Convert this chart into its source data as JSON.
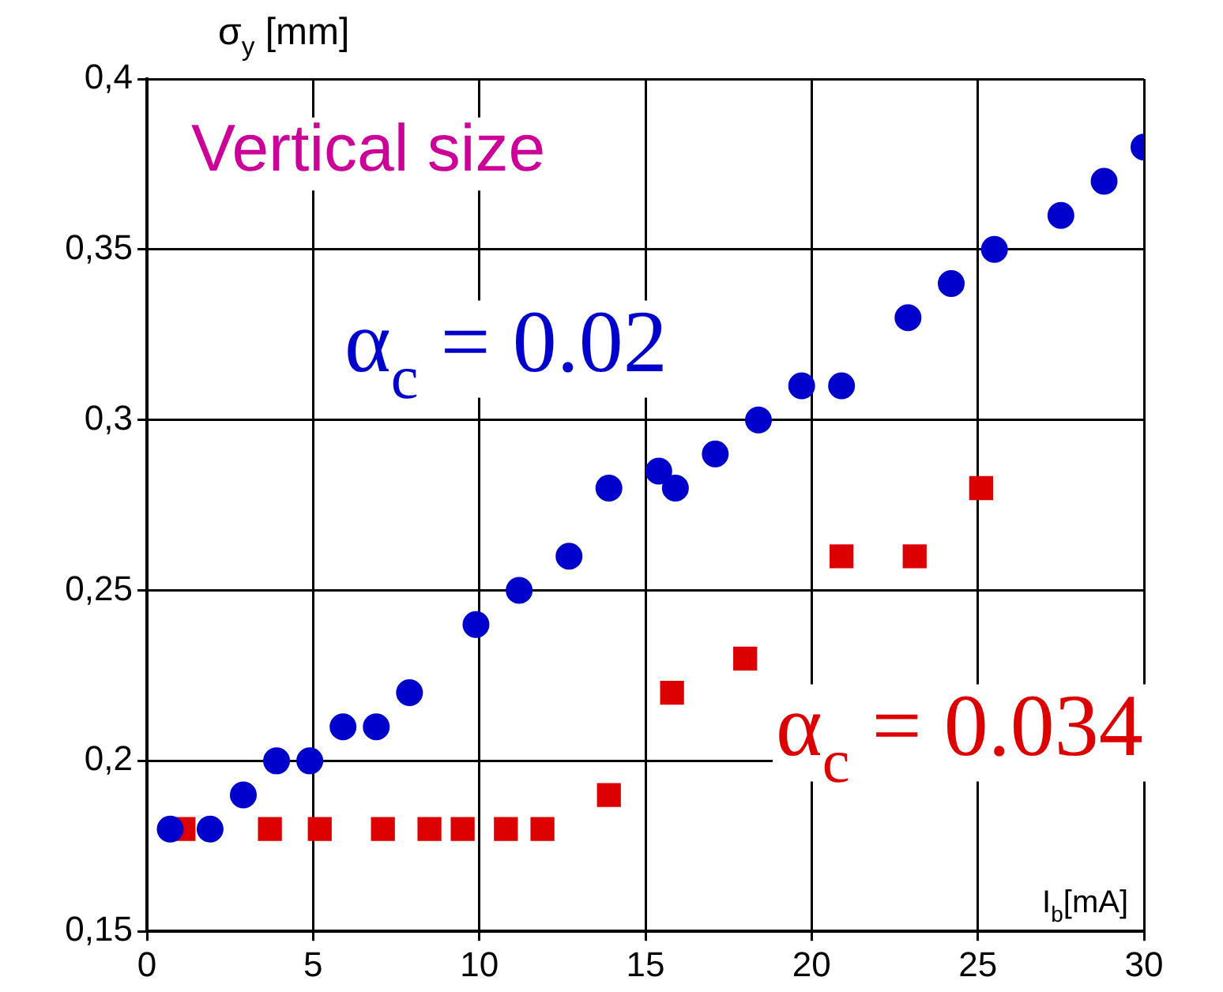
{
  "chart_data": {
    "type": "scatter",
    "xlabel": "I$_{b}$[mA]",
    "ylabel": "σ$_{y}$ [mm]",
    "annotations": [
      "Vertical size"
    ],
    "xlim": [
      0,
      30
    ],
    "xticks": [
      0,
      5,
      10,
      15,
      20,
      25,
      30
    ],
    "ylim": [
      0.15,
      0.4
    ],
    "yticks": [
      {
        "value": 0.15,
        "label": "0,15"
      },
      {
        "value": 0.2,
        "label": "0,2"
      },
      {
        "value": 0.25,
        "label": "0,25"
      },
      {
        "value": 0.3,
        "label": "0,3"
      },
      {
        "value": 0.35,
        "label": "0,35"
      },
      {
        "value": 0.4,
        "label": "0,4"
      }
    ],
    "grid": true,
    "legend": false,
    "series": [
      {
        "name": "α$_{c}$ = 0.02",
        "color": "#0000cc",
        "marker": "circle",
        "x": [
          0.7,
          1.9,
          2.9,
          3.9,
          4.9,
          5.9,
          6.9,
          7.9,
          9.9,
          11.2,
          12.7,
          13.9,
          15.4,
          15.9,
          17.1,
          18.4,
          19.7,
          20.9,
          22.9,
          24.2,
          25.5,
          27.5,
          28.8,
          30
        ],
        "values": [
          0.18,
          0.18,
          0.19,
          0.2,
          0.2,
          0.21,
          0.21,
          0.22,
          0.24,
          0.25,
          0.26,
          0.28,
          0.285,
          0.28,
          0.29,
          0.3,
          0.31,
          0.31,
          0.33,
          0.34,
          0.35,
          0.36,
          0.37,
          0.38
        ]
      },
      {
        "name": "α$_{c}$ = 0.034",
        "color": "#dd0000",
        "marker": "square",
        "x": [
          1.1,
          3.7,
          5.2,
          7.1,
          8.5,
          9.5,
          10.8,
          11.9,
          13.9,
          15.8,
          18,
          20.9,
          23.1,
          25.1
        ],
        "values": [
          0.18,
          0.18,
          0.18,
          0.18,
          0.18,
          0.18,
          0.18,
          0.18,
          0.19,
          0.22,
          0.23,
          0.26,
          0.26,
          0.28
        ]
      }
    ]
  }
}
